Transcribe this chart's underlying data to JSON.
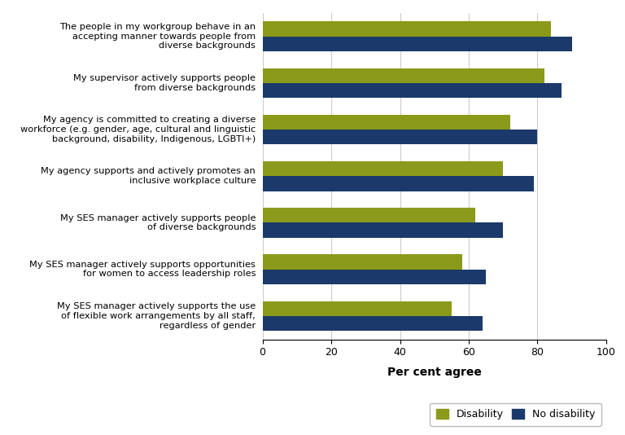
{
  "categories": [
    "The people in my workgroup behave in an\naccepting manner towards people from\ndiverse backgrounds",
    "My supervisor actively supports people\nfrom diverse backgrounds",
    "My agency is committed to creating a diverse\nworkforce (e.g. gender, age, cultural and linguistic\nbackground, disability, Indigenous, LGBTI+)",
    "My agency supports and actively promotes an\ninclusive workplace culture",
    "My SES manager actively supports people\nof diverse backgrounds",
    "My SES manager actively supports opportunities\nfor women to access leadership roles",
    "My SES manager actively supports the use\nof flexible work arrangements by all staff,\nregardless of gender"
  ],
  "disability_values": [
    84,
    82,
    72,
    70,
    62,
    58,
    55
  ],
  "no_disability_values": [
    90,
    87,
    80,
    79,
    70,
    65,
    64
  ],
  "disability_color": "#8b9a1a",
  "no_disability_color": "#1b3a6b",
  "xlabel": "Per cent agree",
  "xlim": [
    0,
    100
  ],
  "xticks": [
    0,
    20,
    40,
    60,
    80,
    100
  ],
  "legend_labels": [
    "Disability",
    "No disability"
  ],
  "bar_height": 0.32,
  "background_color": "#ffffff",
  "grid_color": "#cccccc"
}
